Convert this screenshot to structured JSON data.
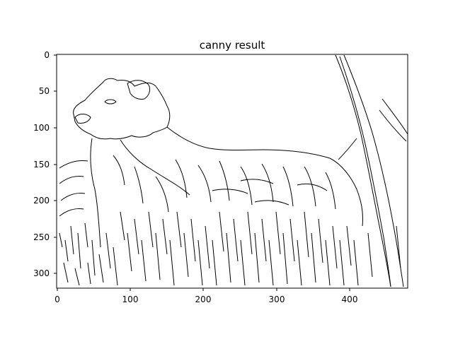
{
  "figure": {
    "title": "canny result"
  },
  "image_plot": {
    "description_kind": "edge-map",
    "colors": {
      "background": "#ffffff",
      "edges": "#000000",
      "axes": "#000000"
    },
    "x_ticks": [
      "0",
      "100",
      "200",
      "300",
      "400"
    ],
    "y_ticks": [
      "0",
      "50",
      "100",
      "150",
      "200",
      "250",
      "300"
    ]
  },
  "chart_data": {
    "type": "image",
    "title": "canny result",
    "xlabel": "",
    "ylabel": "",
    "xlim": [
      0,
      480
    ],
    "ylim": [
      320,
      0
    ],
    "x_tick_values": [
      0,
      100,
      200,
      300,
      400
    ],
    "y_tick_values": [
      0,
      50,
      100,
      150,
      200,
      250,
      300
    ],
    "grid": false,
    "legend": "none"
  }
}
